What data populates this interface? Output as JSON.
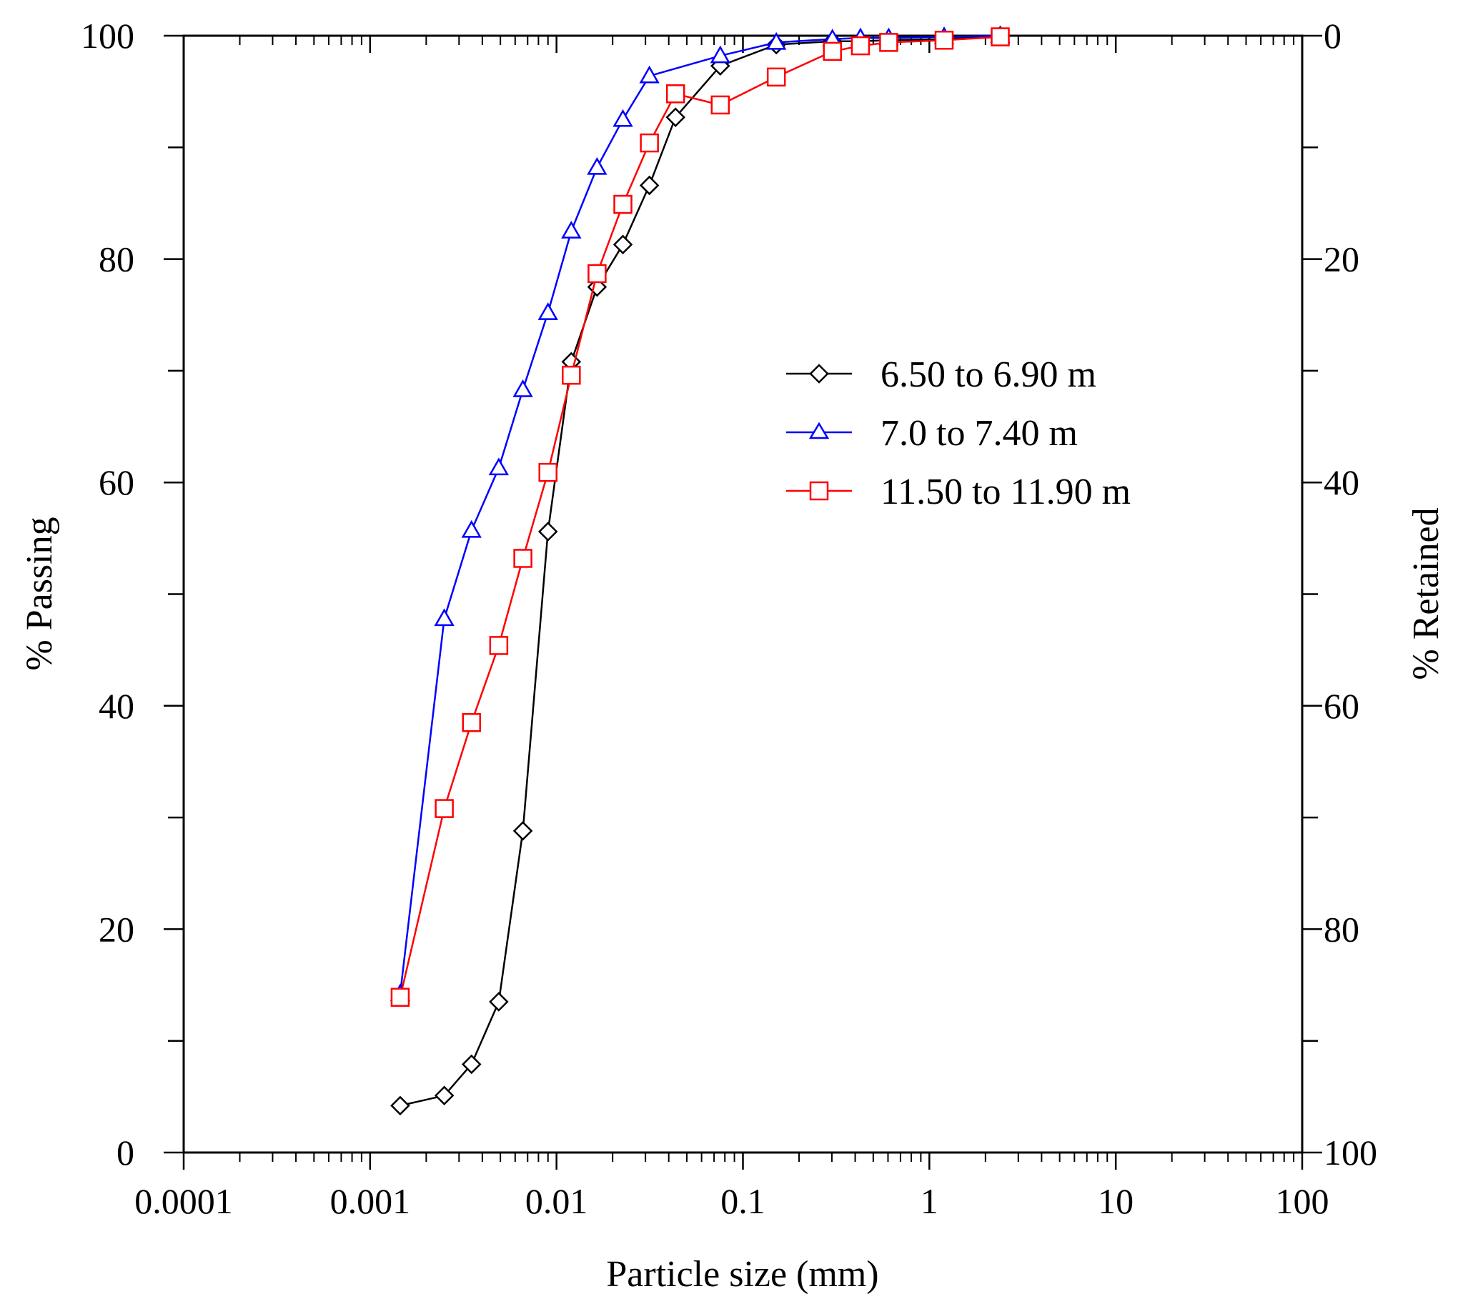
{
  "chart_data": {
    "type": "scatter",
    "title": "",
    "xlabel": "Particle size (mm)",
    "ylabel": "% Passing",
    "y2label": "% Retained",
    "xscale": "log",
    "xlim": [
      0.0001,
      100
    ],
    "ylim": [
      0,
      100
    ],
    "y2lim": [
      100,
      0
    ],
    "x_tick_labels": [
      "0.0001",
      "0.001",
      "0.01",
      "0.1",
      "1",
      "10",
      "100"
    ],
    "y_tick_labels": [
      "0",
      "20",
      "40",
      "60",
      "80",
      "100"
    ],
    "y2_tick_labels": [
      "100",
      "80",
      "60",
      "40",
      "20",
      "0"
    ],
    "grid": false,
    "legend_position": "center-right",
    "series": [
      {
        "name": "6.50 to 6.90 m",
        "color": "#000000",
        "marker": "diamond",
        "x": [
          0.00145,
          0.0025,
          0.0035,
          0.0049,
          0.0066,
          0.009,
          0.012,
          0.0165,
          0.0227,
          0.0315,
          0.0435,
          0.0756,
          0.151,
          0.302,
          0.427,
          0.605,
          1.2,
          2.4
        ],
        "y": [
          4.2,
          5.1,
          7.9,
          13.5,
          28.8,
          55.6,
          70.8,
          77.5,
          81.3,
          86.6,
          92.7,
          97.3,
          99.2,
          99.5,
          99.5,
          99.6,
          99.7,
          100
        ]
      },
      {
        "name": "7.0 to 7.40 m",
        "color": "#0000ff",
        "marker": "triangle",
        "x": [
          0.00145,
          0.0025,
          0.0035,
          0.0049,
          0.0066,
          0.009,
          0.012,
          0.0165,
          0.0227,
          0.0315,
          0.0756,
          0.151,
          0.302,
          0.427,
          0.605,
          1.2,
          2.4
        ],
        "y": [
          14.2,
          47.8,
          55.7,
          61.3,
          68.3,
          75.2,
          82.5,
          88.2,
          92.5,
          96.4,
          98.2,
          99.4,
          99.7,
          99.8,
          99.8,
          99.9,
          100
        ]
      },
      {
        "name": "11.50 to 11.90 m",
        "color": "#ff0000",
        "marker": "square",
        "x": [
          0.00145,
          0.0025,
          0.0035,
          0.0049,
          0.0066,
          0.009,
          0.012,
          0.0165,
          0.0227,
          0.0315,
          0.0435,
          0.0756,
          0.151,
          0.302,
          0.427,
          0.605,
          1.2,
          2.4
        ],
        "y": [
          13.9,
          30.8,
          38.5,
          45.4,
          53.2,
          60.9,
          69.6,
          78.7,
          84.9,
          90.4,
          94.8,
          93.8,
          96.3,
          98.6,
          99.1,
          99.4,
          99.6,
          99.9
        ]
      }
    ]
  }
}
